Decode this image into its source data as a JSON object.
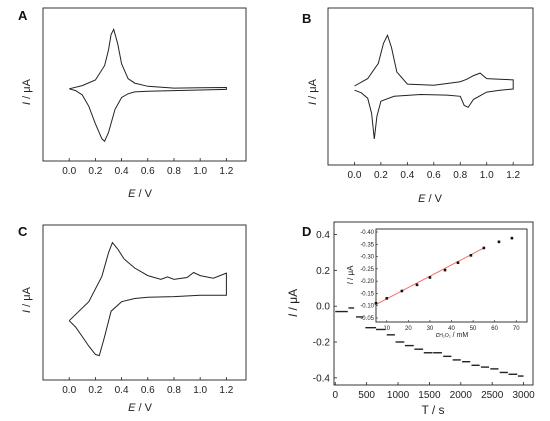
{
  "chart_data": [
    {
      "panel": "A",
      "type": "line",
      "xlabel_var": "E",
      "xlabel_unit": " / V",
      "ylabel_var": "I",
      "ylabel_unit": " / μA",
      "xlim": [
        -0.2,
        1.35
      ],
      "x_ticks": [
        "0.0",
        "0.2",
        "0.4",
        "0.6",
        "0.8",
        "1.0",
        "1.2"
      ],
      "ylim": [
        -1,
        1
      ],
      "y_ticks": [],
      "series": [
        {
          "x": [
            0.0,
            0.05,
            0.1,
            0.15,
            0.2,
            0.25,
            0.27,
            0.3,
            0.35,
            0.4,
            0.45,
            0.5,
            0.6,
            0.8,
            1.0,
            1.2,
            1.2,
            1.0,
            0.8,
            0.6,
            0.5,
            0.45,
            0.4,
            0.37,
            0.34,
            0.32,
            0.3,
            0.27,
            0.2,
            0.1,
            0.0
          ],
          "y": [
            -0.02,
            -0.05,
            -0.12,
            -0.3,
            -0.58,
            -0.82,
            -0.86,
            -0.72,
            -0.35,
            -0.16,
            -0.1,
            -0.07,
            -0.06,
            -0.05,
            -0.04,
            -0.03,
            0.0,
            -0.005,
            -0.01,
            0.02,
            0.07,
            0.14,
            0.38,
            0.7,
            0.93,
            0.85,
            0.6,
            0.35,
            0.12,
            0.03,
            -0.02
          ]
        }
      ]
    },
    {
      "panel": "B",
      "type": "line",
      "xlabel_var": "E",
      "xlabel_unit": " / V",
      "ylabel_var": "I",
      "ylabel_unit": " / μA",
      "xlim": [
        -0.2,
        1.35
      ],
      "x_ticks": [
        "0.0",
        "0.2",
        "0.4",
        "0.6",
        "0.8",
        "1.0",
        "1.2"
      ],
      "ylim": [
        -1,
        1
      ],
      "y_ticks": [],
      "series": [
        {
          "x": [
            0.0,
            0.05,
            0.1,
            0.13,
            0.15,
            0.17,
            0.2,
            0.3,
            0.5,
            0.7,
            0.8,
            0.83,
            0.86,
            0.9,
            1.0,
            1.1,
            1.2,
            1.2,
            1.1,
            1.0,
            0.95,
            0.9,
            0.85,
            0.8,
            0.6,
            0.4,
            0.32,
            0.28,
            0.25,
            0.22,
            0.18,
            0.1,
            0.0
          ],
          "y": [
            -0.02,
            -0.06,
            -0.15,
            -0.4,
            -0.82,
            -0.45,
            -0.2,
            -0.12,
            -0.09,
            -0.1,
            -0.12,
            -0.27,
            -0.3,
            -0.17,
            -0.05,
            -0.02,
            0.0,
            0.15,
            0.16,
            0.17,
            0.26,
            0.22,
            0.16,
            0.12,
            0.06,
            0.08,
            0.28,
            0.68,
            0.88,
            0.75,
            0.42,
            0.17,
            0.05
          ]
        }
      ]
    },
    {
      "panel": "C",
      "type": "line",
      "xlabel_var": "E",
      "xlabel_unit": " / V",
      "ylabel_var": "I",
      "ylabel_unit": " / μA",
      "xlim": [
        -0.2,
        1.35
      ],
      "x_ticks": [
        "0.0",
        "0.2",
        "0.4",
        "0.6",
        "0.8",
        "1.0",
        "1.2"
      ],
      "ylim": [
        -1,
        1
      ],
      "y_ticks": [],
      "series": [
        {
          "x": [
            0.0,
            0.05,
            0.1,
            0.15,
            0.2,
            0.23,
            0.27,
            0.32,
            0.4,
            0.5,
            0.6,
            0.8,
            1.0,
            1.2,
            1.2,
            1.1,
            1.0,
            0.95,
            0.9,
            0.8,
            0.75,
            0.7,
            0.6,
            0.5,
            0.42,
            0.37,
            0.33,
            0.3,
            0.25,
            0.15,
            0.0
          ],
          "y": [
            -0.35,
            -0.45,
            -0.6,
            -0.75,
            -0.88,
            -0.9,
            -0.6,
            -0.2,
            -0.05,
            0.0,
            0.02,
            0.03,
            0.05,
            0.05,
            0.4,
            0.32,
            0.36,
            0.41,
            0.33,
            0.3,
            0.34,
            0.3,
            0.36,
            0.48,
            0.62,
            0.78,
            0.88,
            0.72,
            0.35,
            -0.05,
            -0.35
          ]
        }
      ]
    },
    {
      "panel": "D",
      "type": "line",
      "xlabel": "T / s",
      "ylabel_var": "I",
      "ylabel_unit": " / μA",
      "xlim": [
        -20,
        3150
      ],
      "x_ticks": [
        0,
        500,
        1000,
        1500,
        2000,
        2500,
        3000
      ],
      "ylim": [
        -0.44,
        0.47
      ],
      "y_ticks": [
        "0.4",
        "0.2",
        "0.0",
        "-0.2",
        "-0.4"
      ],
      "step_series": [
        {
          "x": [
            0,
            200
          ],
          "y": -0.03
        },
        {
          "x": [
            210,
            300
          ],
          "y": -0.01
        },
        {
          "x": [
            330,
            450
          ],
          "y": -0.06
        },
        {
          "x": [
            480,
            650
          ],
          "y": -0.12
        },
        {
          "x": [
            650,
            800
          ],
          "y": -0.13
        },
        {
          "x": [
            820,
            950
          ],
          "y": -0.16
        },
        {
          "x": [
            960,
            1100
          ],
          "y": -0.2
        },
        {
          "x": [
            1110,
            1250
          ],
          "y": -0.22
        },
        {
          "x": [
            1260,
            1400
          ],
          "y": -0.24
        },
        {
          "x": [
            1410,
            1550
          ],
          "y": -0.26
        },
        {
          "x": [
            1560,
            1700
          ],
          "y": -0.26
        },
        {
          "x": [
            1720,
            1850
          ],
          "y": -0.28
        },
        {
          "x": [
            1870,
            2000
          ],
          "y": -0.3
        },
        {
          "x": [
            2020,
            2150
          ],
          "y": -0.31
        },
        {
          "x": [
            2170,
            2300
          ],
          "y": -0.33
        },
        {
          "x": [
            2320,
            2450
          ],
          "y": -0.34
        },
        {
          "x": [
            2470,
            2600
          ],
          "y": -0.35
        },
        {
          "x": [
            2620,
            2750
          ],
          "y": -0.37
        },
        {
          "x": [
            2760,
            2900
          ],
          "y": -0.38
        },
        {
          "x": [
            2910,
            3000
          ],
          "y": -0.39
        }
      ],
      "inset": {
        "type": "scatter",
        "xlabel_var": "c",
        "xlabel_sub": "H₂O₂",
        "xlabel_unit": " / mM",
        "ylabel_var": "I",
        "ylabel_unit": " / μA",
        "xlim": [
          5,
          75
        ],
        "x_ticks": [
          10,
          20,
          30,
          40,
          50,
          60,
          70
        ],
        "ylim": [
          -0.05,
          -0.4
        ],
        "y_ticks": [
          "-0.40",
          "-0.35",
          "-0.30",
          "-0.25",
          "-0.20",
          "-0.15",
          "-0.10",
          "-0.05"
        ],
        "points": {
          "x": [
            5,
            10,
            17,
            24,
            30,
            37,
            43,
            49,
            55,
            62,
            68
          ],
          "y": [
            -0.11,
            -0.13,
            -0.16,
            -0.185,
            -0.215,
            -0.245,
            -0.275,
            -0.305,
            -0.335,
            -0.36,
            -0.375
          ]
        },
        "fit": {
          "x": [
            5,
            55
          ],
          "y": [
            -0.105,
            -0.335
          ]
        }
      }
    }
  ]
}
